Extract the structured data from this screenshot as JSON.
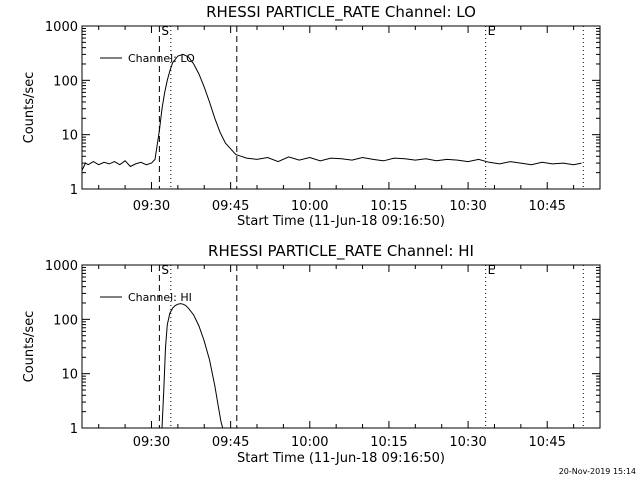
{
  "footer": {
    "timestamp": "20-Nov-2019 15:14"
  },
  "chart_data": [
    {
      "type": "line",
      "title": "RHESSI PARTICLE_RATE Channel: LO",
      "xlabel": "Start Time (11-Jun-18 09:16:50)",
      "ylabel": "Counts/sec",
      "yscale": "log",
      "xlim": [
        "09:16:50",
        "10:55:00"
      ],
      "ylim": [
        1,
        1000
      ],
      "xticks": [
        "09:30",
        "09:45",
        "10:00",
        "10:15",
        "10:30",
        "10:45"
      ],
      "yticks": [
        "1",
        "10",
        "100",
        "1000"
      ],
      "legend": {
        "label": "Channel: LO",
        "placement": "top-left"
      },
      "markers": [
        {
          "label": "S",
          "time": "09:31:30",
          "style": "dashed"
        },
        {
          "label": "",
          "time": "09:46:10",
          "style": "dashed"
        },
        {
          "label": "",
          "time": "09:33:40",
          "style": "dotted"
        },
        {
          "label": "E",
          "time": "10:33:20",
          "style": "dotted"
        },
        {
          "label": "",
          "time": "10:51:50",
          "style": "dotted"
        }
      ],
      "series": [
        {
          "name": "Channel: LO",
          "x": [
            "09:16:50",
            "09:17:30",
            "09:18:00",
            "09:19:00",
            "09:20:00",
            "09:21:00",
            "09:22:00",
            "09:23:00",
            "09:24:00",
            "09:25:00",
            "09:26:00",
            "09:27:00",
            "09:28:00",
            "09:29:00",
            "09:30:00",
            "09:30:40",
            "09:31:30",
            "09:32:00",
            "09:32:30",
            "09:33:00",
            "09:33:30",
            "09:34:00",
            "09:35:00",
            "09:36:00",
            "09:37:00",
            "09:38:00",
            "09:39:00",
            "09:40:00",
            "09:41:00",
            "09:42:00",
            "09:43:00",
            "09:44:00",
            "09:45:00",
            "09:46:00",
            "09:47:00",
            "09:48:00",
            "09:50:00",
            "09:52:00",
            "09:54:00",
            "09:56:00",
            "09:58:00",
            "10:00:00",
            "10:02:00",
            "10:04:00",
            "10:06:00",
            "10:08:00",
            "10:10:00",
            "10:12:00",
            "10:14:00",
            "10:16:00",
            "10:18:00",
            "10:20:00",
            "10:22:00",
            "10:24:00",
            "10:26:00",
            "10:28:00",
            "10:30:00",
            "10:32:00",
            "10:34:00",
            "10:36:00",
            "10:38:00",
            "10:40:00",
            "10:42:00",
            "10:44:00",
            "10:46:00",
            "10:48:00",
            "10:50:00",
            "10:51:30"
          ],
          "y": [
            2.2,
            3,
            2.8,
            3.2,
            2.8,
            3.1,
            2.9,
            3.2,
            2.8,
            3.3,
            2.6,
            2.9,
            3.1,
            2.8,
            3,
            3.5,
            12,
            30,
            60,
            100,
            150,
            210,
            280,
            300,
            270,
            200,
            130,
            75,
            40,
            20,
            11,
            7,
            5.5,
            4.3,
            4,
            3.7,
            3.5,
            3.8,
            3.2,
            3.9,
            3.4,
            3.8,
            3.3,
            3.7,
            3.6,
            3.4,
            3.8,
            3.5,
            3.3,
            3.7,
            3.6,
            3.4,
            3.6,
            3.3,
            3.5,
            3.4,
            3.2,
            3.5,
            3.1,
            2.9,
            3.2,
            3,
            2.8,
            3.1,
            2.9,
            3,
            2.8,
            3
          ]
        }
      ]
    },
    {
      "type": "line",
      "title": "RHESSI PARTICLE_RATE Channel: HI",
      "xlabel": "Start Time (11-Jun-18 09:16:50)",
      "ylabel": "Counts/sec",
      "yscale": "log",
      "xlim": [
        "09:16:50",
        "10:55:00"
      ],
      "ylim": [
        1,
        1000
      ],
      "xticks": [
        "09:30",
        "09:45",
        "10:00",
        "10:15",
        "10:30",
        "10:45"
      ],
      "yticks": [
        "1",
        "10",
        "100",
        "1000"
      ],
      "legend": {
        "label": "Channel: HI",
        "placement": "top-left"
      },
      "markers": [
        {
          "label": "S",
          "time": "09:31:30",
          "style": "dashed"
        },
        {
          "label": "",
          "time": "09:46:10",
          "style": "dashed"
        },
        {
          "label": "",
          "time": "09:33:40",
          "style": "dotted"
        },
        {
          "label": "E",
          "time": "10:33:20",
          "style": "dotted"
        },
        {
          "label": "",
          "time": "10:51:50",
          "style": "dotted"
        }
      ],
      "series": [
        {
          "name": "Channel: HI",
          "x": [
            "09:32:00",
            "09:32:20",
            "09:32:40",
            "09:33:00",
            "09:33:30",
            "09:34:00",
            "09:34:30",
            "09:35:00",
            "09:35:30",
            "09:36:00",
            "09:36:30",
            "09:37:00",
            "09:38:00",
            "09:39:00",
            "09:40:00",
            "09:41:00",
            "09:42:00",
            "09:42:40",
            "09:43:10",
            "09:43:30"
          ],
          "y": [
            1,
            5,
            30,
            80,
            130,
            160,
            180,
            190,
            195,
            190,
            180,
            160,
            120,
            75,
            40,
            18,
            6,
            2.5,
            1.3,
            1
          ]
        }
      ]
    }
  ]
}
